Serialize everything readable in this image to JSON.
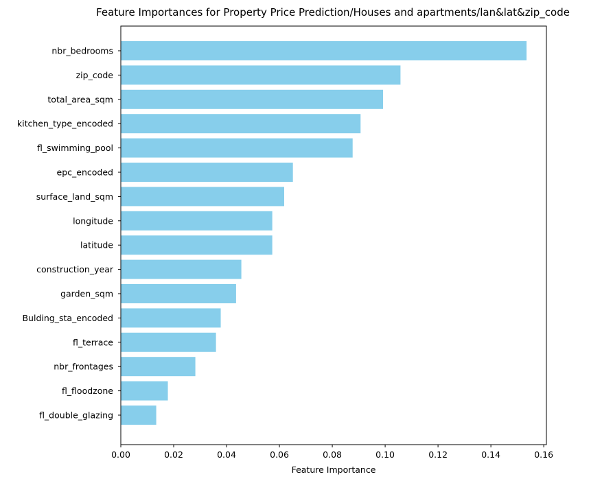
{
  "chart_data": {
    "type": "bar",
    "orientation": "horizontal",
    "title": "Feature Importances for Property Price Prediction/Houses and apartments/lan&lat&zip_code",
    "xlabel": "Feature Importance",
    "ylabel": "",
    "xlim": [
      0,
      0.161
    ],
    "xticks": [
      0.0,
      0.02,
      0.04,
      0.06,
      0.08,
      0.1,
      0.12,
      0.14,
      0.16
    ],
    "xtick_labels": [
      "0.00",
      "0.02",
      "0.04",
      "0.06",
      "0.08",
      "0.10",
      "0.12",
      "0.14",
      "0.16"
    ],
    "grid": false,
    "bar_color": "#87CEEB",
    "categories": [
      "nbr_bedrooms",
      "zip_code",
      "total_area_sqm",
      "kitchen_type_encoded",
      "fl_swimming_pool",
      "epc_encoded",
      "surface_land_sqm",
      "longitude",
      "latitude",
      "construction_year",
      "garden_sqm",
      "Bulding_sta_encoded",
      "fl_terrace",
      "nbr_frontages",
      "fl_floodzone",
      "fl_double_glazing"
    ],
    "values": [
      0.1535,
      0.1058,
      0.0992,
      0.0907,
      0.0877,
      0.0651,
      0.0618,
      0.0573,
      0.0573,
      0.0456,
      0.0436,
      0.0378,
      0.036,
      0.0282,
      0.0178,
      0.0134
    ]
  }
}
